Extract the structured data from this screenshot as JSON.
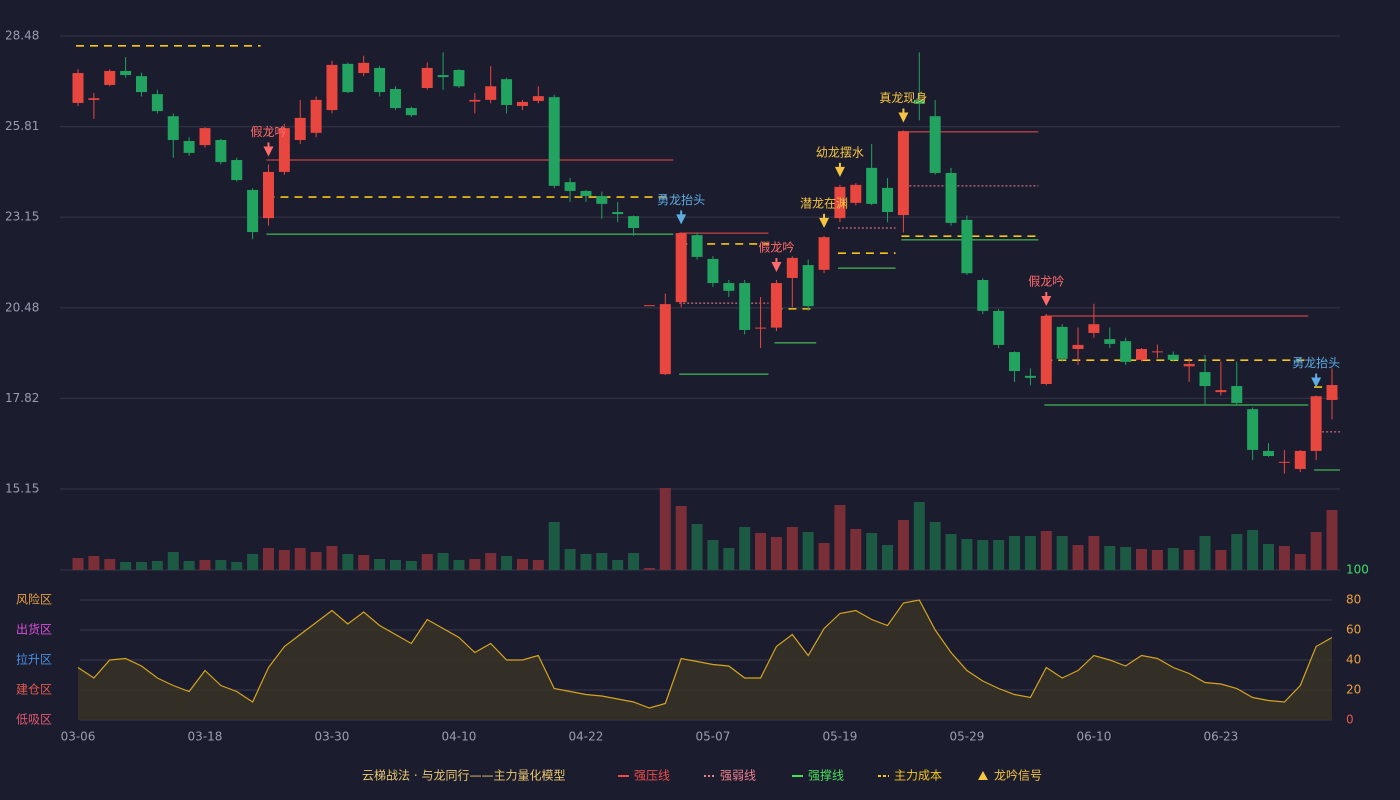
{
  "chart_data": {
    "type": "candlestick",
    "categories": [
      "03-06",
      null,
      null,
      null,
      null,
      null,
      null,
      null,
      "03-18",
      null,
      null,
      null,
      null,
      null,
      null,
      null,
      "03-30",
      null,
      null,
      null,
      null,
      null,
      null,
      null,
      "04-10",
      null,
      null,
      null,
      null,
      null,
      null,
      null,
      "04-22",
      null,
      null,
      null,
      null,
      null,
      null,
      null,
      "05-07",
      null,
      null,
      null,
      null,
      null,
      null,
      null,
      "05-19",
      null,
      null,
      null,
      null,
      null,
      null,
      null,
      "05-29",
      null,
      null,
      null,
      null,
      null,
      null,
      null,
      "06-10",
      null,
      null,
      null,
      null,
      null,
      null,
      null,
      "06-23",
      null,
      null,
      null,
      null,
      null,
      null,
      null
    ],
    "open": [
      26.51,
      26.6,
      27.04,
      27.45,
      27.3,
      26.77,
      26.12,
      25.39,
      25.27,
      25.42,
      24.83,
      23.95,
      23.12,
      24.48,
      25.42,
      25.63,
      26.3,
      27.66,
      27.39,
      27.54,
      26.92,
      26.36,
      26.95,
      27.33,
      27.48,
      26.55,
      26.6,
      27.21,
      26.42,
      26.57,
      26.68,
      24.18,
      23.92,
      23.77,
      23.3,
      23.18,
      20.56,
      18.53,
      20.65,
      22.62,
      21.92,
      21.21,
      21.21,
      19.87,
      19.9,
      21.36,
      21.74,
      21.6,
      23.12,
      23.57,
      24.6,
      24.01,
      23.21,
      26.6,
      26.12,
      24.45,
      23.07,
      21.3,
      20.39,
      19.18,
      18.48,
      18.24,
      19.92,
      19.27,
      19.74,
      19.56,
      19.5,
      18.95,
      19.17,
      19.1,
      18.76,
      18.59,
      18.0,
      18.18,
      17.5,
      16.27,
      15.95,
      15.74,
      16.27,
      17.77
    ],
    "high": [
      27.5,
      26.8,
      27.5,
      27.86,
      27.4,
      26.9,
      26.2,
      25.5,
      25.8,
      25.45,
      24.9,
      24.0,
      24.7,
      25.9,
      26.6,
      26.7,
      27.75,
      27.7,
      27.9,
      27.6,
      27.0,
      26.4,
      27.7,
      28.0,
      27.5,
      26.8,
      27.6,
      27.25,
      26.6,
      27.0,
      26.75,
      24.3,
      23.95,
      23.9,
      23.6,
      23.2,
      20.56,
      20.9,
      22.7,
      22.7,
      22.0,
      21.3,
      21.3,
      20.8,
      21.3,
      22.0,
      21.9,
      22.6,
      24.1,
      24.15,
      25.3,
      24.3,
      25.7,
      28.0,
      26.6,
      24.6,
      23.2,
      21.35,
      20.45,
      19.2,
      18.7,
      20.3,
      20.0,
      19.9,
      20.6,
      19.9,
      19.6,
      19.3,
      19.4,
      19.2,
      19.0,
      19.1,
      18.9,
      18.9,
      17.55,
      16.5,
      16.3,
      16.3,
      17.9,
      18.7
    ],
    "low": [
      26.42,
      26.04,
      27.0,
      27.25,
      26.7,
      26.2,
      24.9,
      24.95,
      25.2,
      24.7,
      24.2,
      22.5,
      22.9,
      24.4,
      25.3,
      25.5,
      26.2,
      26.8,
      27.3,
      26.7,
      26.3,
      26.1,
      26.9,
      26.9,
      26.95,
      26.2,
      26.5,
      26.2,
      26.3,
      26.5,
      24.0,
      23.6,
      23.6,
      23.1,
      23.0,
      22.6,
      20.56,
      18.5,
      20.5,
      21.9,
      21.1,
      20.8,
      19.7,
      19.3,
      19.8,
      20.5,
      20.4,
      21.5,
      23.0,
      23.5,
      23.5,
      23.0,
      22.7,
      26.0,
      24.4,
      22.9,
      21.45,
      20.3,
      19.3,
      18.3,
      18.2,
      18.2,
      18.9,
      18.8,
      19.6,
      19.3,
      18.8,
      18.9,
      19.0,
      18.9,
      18.3,
      17.6,
      17.9,
      17.6,
      16.0,
      16.1,
      15.6,
      15.65,
      16.0,
      17.2
    ],
    "close": [
      27.39,
      26.65,
      27.45,
      27.33,
      26.83,
      26.27,
      25.42,
      25.04,
      25.77,
      24.77,
      24.24,
      22.71,
      24.48,
      25.77,
      26.07,
      26.6,
      27.63,
      26.83,
      27.69,
      26.83,
      26.36,
      26.15,
      27.54,
      27.27,
      27.0,
      26.6,
      27.0,
      26.45,
      26.54,
      26.71,
      24.07,
      23.92,
      23.77,
      23.54,
      23.24,
      22.83,
      20.56,
      20.59,
      22.68,
      21.98,
      21.21,
      20.98,
      19.83,
      19.9,
      21.21,
      21.95,
      20.53,
      22.56,
      24.04,
      24.1,
      23.54,
      23.3,
      25.68,
      26.48,
      24.45,
      22.98,
      21.5,
      20.39,
      19.39,
      18.62,
      18.42,
      20.24,
      18.98,
      19.39,
      20.0,
      19.42,
      18.89,
      19.27,
      19.2,
      18.95,
      18.83,
      18.18,
      18.06,
      17.68,
      16.3,
      16.12,
      15.95,
      16.27,
      17.88,
      18.21
    ],
    "volume": [
      12,
      14,
      11,
      8,
      8,
      9,
      18,
      9,
      10,
      10,
      8,
      16,
      22,
      20,
      22,
      18,
      24,
      16,
      15,
      11,
      10,
      9,
      16,
      17,
      10,
      11,
      17,
      14,
      11,
      10,
      48,
      21,
      16,
      17,
      10,
      17,
      2,
      82,
      64,
      46,
      30,
      22,
      43,
      37,
      33,
      43,
      38,
      27,
      65,
      41,
      37,
      25,
      50,
      68,
      48,
      36,
      31,
      30,
      30,
      34,
      34,
      39,
      34,
      25,
      34,
      24,
      23,
      21,
      20,
      22,
      20,
      34,
      20,
      36,
      40,
      26,
      24,
      16,
      38,
      60
    ],
    "up_color": "#e8473f",
    "down_color": "#22a35f",
    "volume_up_color": "#7a2e38",
    "volume_down_color": "#1d5a44",
    "ylim": [
      15.15,
      28.48
    ],
    "yticks": [
      15.15,
      17.82,
      20.48,
      23.15,
      25.81,
      28.48
    ],
    "grid": true,
    "levels": [
      {
        "item": 3,
        "start": 0,
        "end": 11,
        "price": 28.19
      },
      {
        "item": 0,
        "start": 12,
        "end": 37,
        "price": 24.83
      },
      {
        "item": 3,
        "start": 12,
        "end": 37,
        "price": 23.74
      },
      {
        "item": 2,
        "start": 12,
        "end": 37,
        "price": 22.65
      },
      {
        "item": 0,
        "start": 38,
        "end": 43,
        "price": 22.68
      },
      {
        "item": 3,
        "start": 38,
        "end": 43,
        "price": 22.36
      },
      {
        "item": 1,
        "start": 38,
        "end": 43,
        "price": 20.62
      },
      {
        "item": 2,
        "start": 38,
        "end": 43,
        "price": 18.53
      },
      {
        "item": 3,
        "start": 44,
        "end": 46,
        "price": 20.45
      },
      {
        "item": 2,
        "start": 44,
        "end": 46,
        "price": 19.45
      },
      {
        "item": 1,
        "start": 48,
        "end": 51,
        "price": 22.83
      },
      {
        "item": 3,
        "start": 48,
        "end": 51,
        "price": 22.09
      },
      {
        "item": 2,
        "start": 48,
        "end": 51,
        "price": 21.65
      },
      {
        "item": 0,
        "start": 52,
        "end": 60,
        "price": 25.66
      },
      {
        "item": 1,
        "start": 52,
        "end": 60,
        "price": 24.07
      },
      {
        "item": 3,
        "start": 52,
        "end": 60,
        "price": 22.59
      },
      {
        "item": 2,
        "start": 52,
        "end": 60,
        "price": 22.48
      },
      {
        "item": 0,
        "start": 61,
        "end": 77,
        "price": 20.24
      },
      {
        "item": 3,
        "start": 61,
        "end": 77,
        "price": 18.94
      },
      {
        "item": 2,
        "start": 61,
        "end": 77,
        "price": 17.62
      },
      {
        "item": 3,
        "start": 78,
        "end": 79,
        "price": 18.15
      },
      {
        "item": 1,
        "start": 78,
        "end": 79,
        "price": 16.83
      },
      {
        "item": 2,
        "start": 78,
        "end": 79,
        "price": 15.71
      }
    ],
    "signals": [
      {
        "index": 12,
        "label": "假龙吟",
        "color": "#ff6b6b"
      },
      {
        "index": 38,
        "label": "勇龙抬头",
        "color": "#5dade2"
      },
      {
        "index": 44,
        "label": "假龙吟",
        "color": "#ff6b6b"
      },
      {
        "index": 47,
        "label": "潜龙在渊",
        "color": "#f5c542"
      },
      {
        "index": 48,
        "label": "幼龙摆水",
        "color": "#f5c542"
      },
      {
        "index": 52,
        "label": "真龙现身",
        "color": "#f5c542"
      },
      {
        "index": 61,
        "label": "假龙吟",
        "color": "#ff6b6b"
      },
      {
        "index": 78,
        "label": "勇龙抬头",
        "color": "#5dade2"
      }
    ],
    "oscillator": {
      "values": [
        35,
        28,
        40,
        41,
        36,
        28,
        23,
        19,
        33,
        23,
        19,
        12,
        35,
        49,
        57,
        65,
        73,
        64,
        72,
        63,
        57,
        51,
        67,
        61,
        55,
        45,
        51,
        40,
        40,
        43,
        21,
        19,
        17,
        16,
        14,
        12,
        8,
        11,
        41,
        39,
        37,
        36,
        28,
        28,
        49,
        57,
        43,
        61,
        71,
        73,
        67,
        63,
        78,
        80,
        60,
        45,
        33,
        26,
        21,
        17,
        15,
        35,
        28,
        33,
        43,
        40,
        36,
        43,
        41,
        35,
        31,
        25,
        24,
        21,
        15,
        13,
        12,
        23,
        49,
        55
      ],
      "color": "#d4a520",
      "fill": "#3a3426",
      "ylim": [
        0,
        100
      ],
      "yticks": [
        0,
        20,
        40,
        60,
        80,
        100
      ],
      "tick_colors": [
        "#e05a4f",
        "#e8a040",
        "#e8a040",
        "#e8a040",
        "#e8a040",
        "#3ddc6a"
      ],
      "zones": [
        {
          "label": "风险区",
          "value": 80,
          "color": "#e8a040"
        },
        {
          "label": "出货区",
          "value": 60,
          "color": "#d94fd9"
        },
        {
          "label": "拉升区",
          "value": 40,
          "color": "#4a90e2"
        },
        {
          "label": "建仓区",
          "value": 20,
          "color": "#e05a4f"
        },
        {
          "label": "低吸区",
          "value": 0,
          "color": "#e05a6f"
        }
      ]
    },
    "legend": {
      "title": "云梯战法 · 与龙同行——主力量化模型",
      "title_color": "#e8c870",
      "items": [
        {
          "name": "强压线",
          "color": "#ef4b4b",
          "style": "solid"
        },
        {
          "name": "强弱线",
          "color": "#f08090",
          "style": "dotted"
        },
        {
          "name": "强撑线",
          "color": "#4cdc5c",
          "style": "solid"
        },
        {
          "name": "主力成本",
          "color": "#f5c518",
          "style": "dashed"
        },
        {
          "name": "龙吟信号",
          "color": "#f5c542",
          "style": "triangle"
        }
      ]
    }
  }
}
